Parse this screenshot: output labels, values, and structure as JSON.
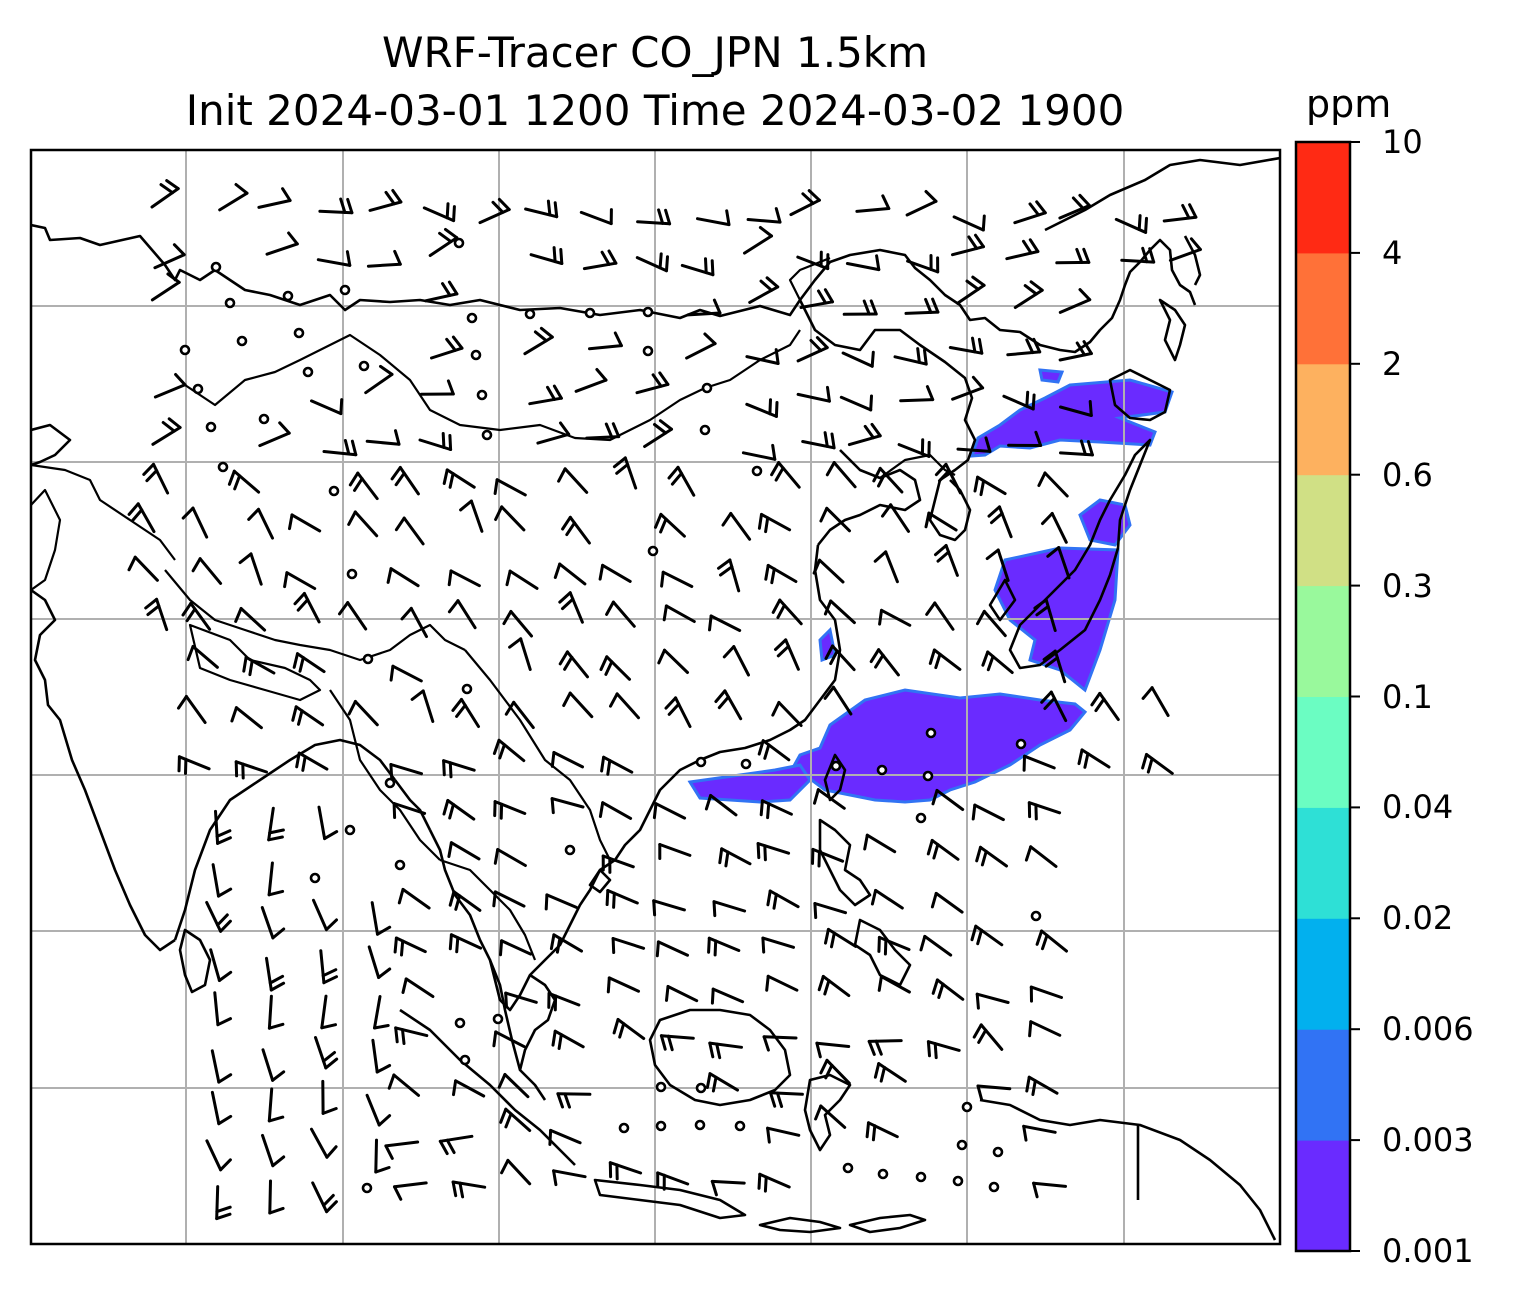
{
  "title_line1": "WRF-Tracer CO_JPN 1.5km",
  "title_line2": "Init 2024-03-01 1200 Time 2024-03-02 1900",
  "colorbar": {
    "label": "ppm",
    "ticks": [
      "0.001",
      "0.003",
      "0.006",
      "0.02",
      "0.04",
      "0.1",
      "0.3",
      "0.6",
      "2",
      "4",
      "10"
    ],
    "colors": [
      "#6a2bff",
      "#3173f4",
      "#02b0ee",
      "#2ee0d6",
      "#6bfdc2",
      "#99f99c",
      "#d0e085",
      "#fdb15f",
      "#ff7138",
      "#ff2a14"
    ]
  },
  "map": {
    "gridlines": true,
    "plume_color": "#6a2bff",
    "plume_edge_color": "#3173f4"
  },
  "chart_data": {
    "type": "map",
    "variable": "CO_JPN tracer concentration",
    "unit": "ppm",
    "contour_levels": [
      0.001,
      0.003,
      0.006,
      0.02,
      0.04,
      0.1,
      0.3,
      0.6,
      2,
      4,
      10
    ],
    "overlays": [
      "coastlines",
      "gridlines",
      "wind barbs"
    ]
  }
}
